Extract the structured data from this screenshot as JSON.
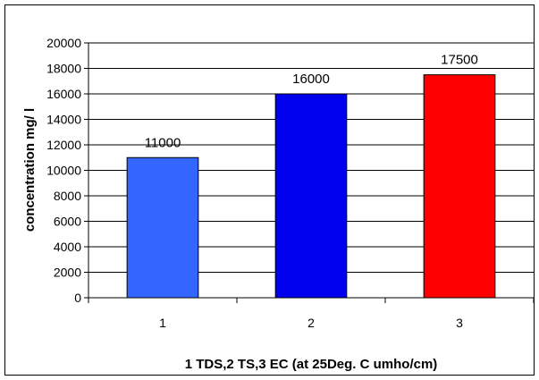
{
  "chart_data": {
    "type": "bar",
    "categories": [
      "1",
      "2",
      "3"
    ],
    "values": [
      11000,
      16000,
      17500
    ],
    "data_labels": [
      "11000",
      "16000",
      "17500"
    ],
    "colors": [
      "#3366ff",
      "#0000ee",
      "#ff0000"
    ],
    "title": "",
    "xlabel": "1 TDS,2 TS,3 EC (at 25Deg. C umho/cm)",
    "ylabel": "concentration mg/ l",
    "ylim": [
      0,
      20000
    ],
    "yticks": [
      "0",
      "2000",
      "4000",
      "6000",
      "8000",
      "10000",
      "12000",
      "14000",
      "16000",
      "18000",
      "20000"
    ],
    "grid": true,
    "legend": "none"
  }
}
